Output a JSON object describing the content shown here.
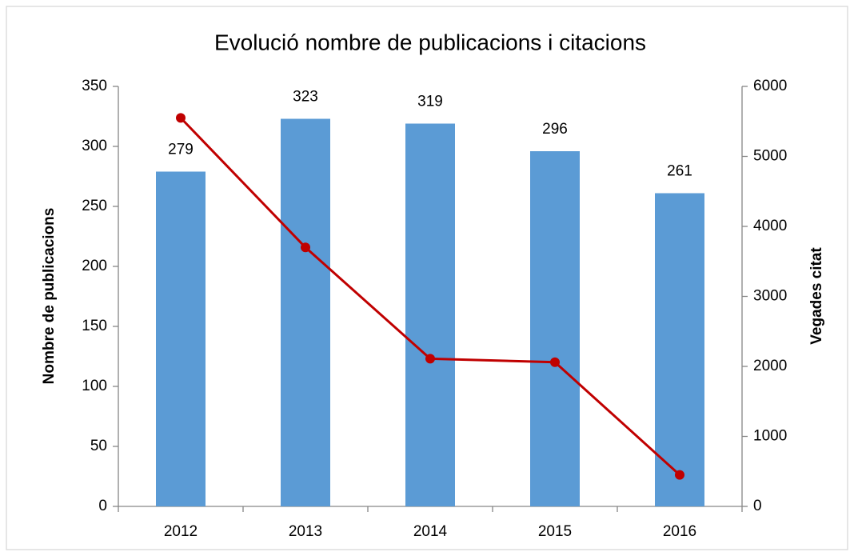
{
  "chart_data": {
    "type": "bar+line",
    "title": "Evolució nombre de publicacions i citacions",
    "y_label": "Nombre de publicacions",
    "y2_label": "Vegades citat",
    "categories": [
      "2012",
      "2013",
      "2014",
      "2015",
      "2016"
    ],
    "series": [
      {
        "type": "bar",
        "color": "#5b9bd5",
        "values": [
          279,
          323,
          319,
          296,
          261
        ],
        "axis": "y"
      },
      {
        "type": "line",
        "color": "#c00000",
        "values": [
          5550,
          3700,
          2110,
          2060,
          450
        ],
        "axis": "y2"
      }
    ],
    "ylim": [
      0,
      350
    ],
    "yticks": [
      0,
      50,
      100,
      150,
      200,
      250,
      300,
      350
    ],
    "y2lim": [
      0,
      6000
    ],
    "y2ticks": [
      0,
      1000,
      2000,
      3000,
      4000,
      5000,
      6000
    ]
  }
}
